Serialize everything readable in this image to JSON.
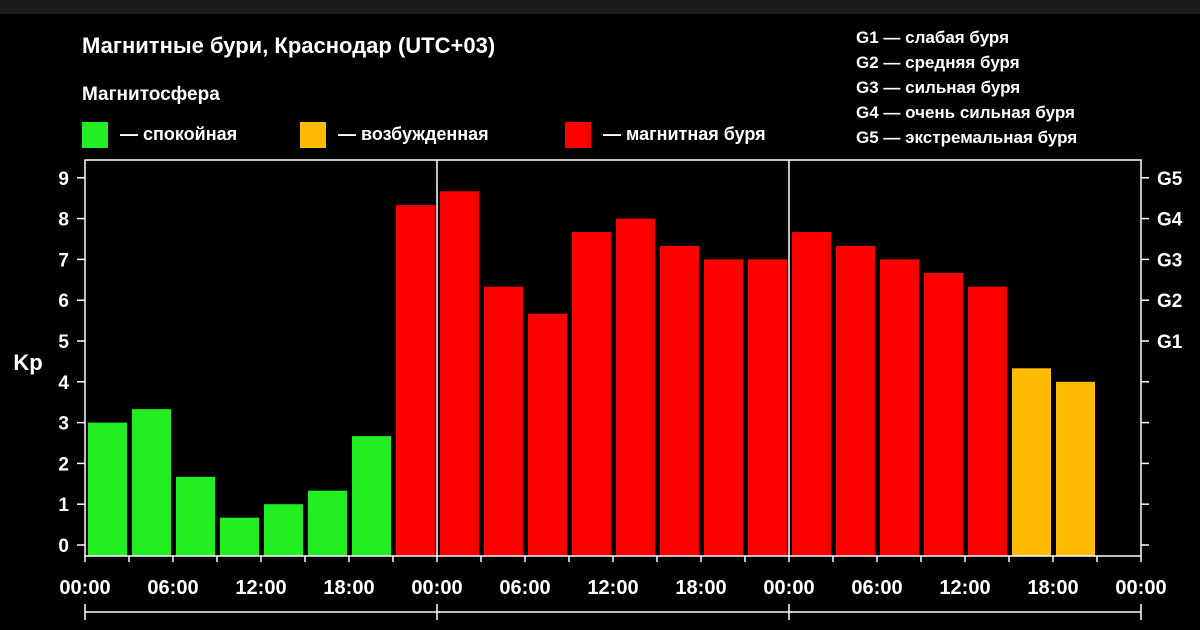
{
  "chart_data": {
    "type": "bar",
    "title": "Магнитные бури, Краснодар (UTC+03)",
    "ylabel": "Kp",
    "ylim": [
      0,
      9
    ],
    "yticks": [
      "0",
      "1",
      "2",
      "3",
      "4",
      "5",
      "6",
      "7",
      "8",
      "9"
    ],
    "right_ticks": [
      {
        "value": 5,
        "label": "G1"
      },
      {
        "value": 6,
        "label": "G2"
      },
      {
        "value": 7,
        "label": "G3"
      },
      {
        "value": 8,
        "label": "G4"
      },
      {
        "value": 9,
        "label": "G5"
      }
    ],
    "x_tick_labels": [
      "00:00",
      "06:00",
      "12:00",
      "18:00",
      "00:00",
      "06:00",
      "12:00",
      "18:00",
      "00:00",
      "06:00",
      "12:00",
      "18:00",
      "00:00"
    ],
    "intervals_per_day": 8,
    "days": 3,
    "values": [
      3.0,
      3.33,
      1.67,
      0.67,
      1.0,
      1.33,
      2.67,
      8.33,
      8.67,
      6.33,
      5.67,
      7.67,
      8.0,
      7.33,
      7.0,
      7.0,
      7.67,
      7.33,
      7.0,
      6.67,
      6.33,
      4.33,
      4.0
    ],
    "levels": [
      "quiet",
      "quiet",
      "quiet",
      "quiet",
      "quiet",
      "quiet",
      "quiet",
      "storm",
      "storm",
      "storm",
      "storm",
      "storm",
      "storm",
      "storm",
      "storm",
      "storm",
      "storm",
      "storm",
      "storm",
      "storm",
      "storm",
      "active",
      "active"
    ],
    "colors": {
      "quiet": "#22ee22",
      "active": "#ffbb00",
      "storm": "#ff0000",
      "grid": "#ffffff"
    },
    "legend": {
      "title": "Магнитосфера",
      "items": [
        {
          "key": "quiet",
          "label": "— спокойная"
        },
        {
          "key": "active",
          "label": "— возбужденная"
        },
        {
          "key": "storm",
          "label": "— магнитная буря"
        }
      ]
    },
    "g_scale": [
      "G1 — слабая буря",
      "G2 — средняя буря",
      "G3 — сильная буря",
      "G4 — очень сильная буря",
      "G5 — экстремальная буря"
    ]
  }
}
